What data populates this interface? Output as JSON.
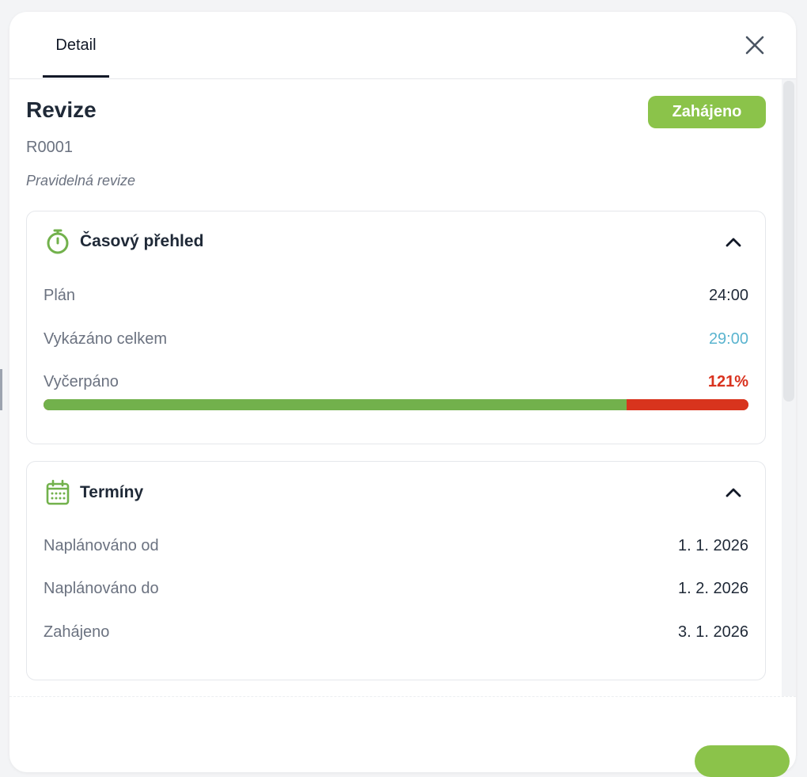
{
  "tabs": [
    {
      "label": "Detail"
    }
  ],
  "header": {
    "title": "Revize",
    "status": "Zahájeno",
    "code": "R0001",
    "subtitle": "Pravidelná revize"
  },
  "time_overview": {
    "title": "Časový přehled",
    "plan_label": "Plán",
    "plan_value": "24:00",
    "reported_label": "Vykázáno celkem",
    "reported_value": "29:00",
    "used_label": "Vyčerpáno",
    "used_value": "121%",
    "used_fraction": 1.2083
  },
  "deadlines": {
    "title": "Termíny",
    "rows": [
      {
        "label": "Naplánováno od",
        "value": "1. 1. 2026"
      },
      {
        "label": "Naplánováno do",
        "value": "1. 2. 2026"
      },
      {
        "label": "Zahájeno",
        "value": "3. 1. 2026"
      }
    ]
  },
  "colors": {
    "accent_green": "#8bc34a",
    "progress_green": "#72b14c",
    "over_red": "#d8341d",
    "reported_blue": "#5ab4cf"
  },
  "icons": {
    "close": "close-icon",
    "timer": "stopwatch-icon",
    "calendar": "calendar-icon",
    "collapse": "chevron-up-icon"
  }
}
